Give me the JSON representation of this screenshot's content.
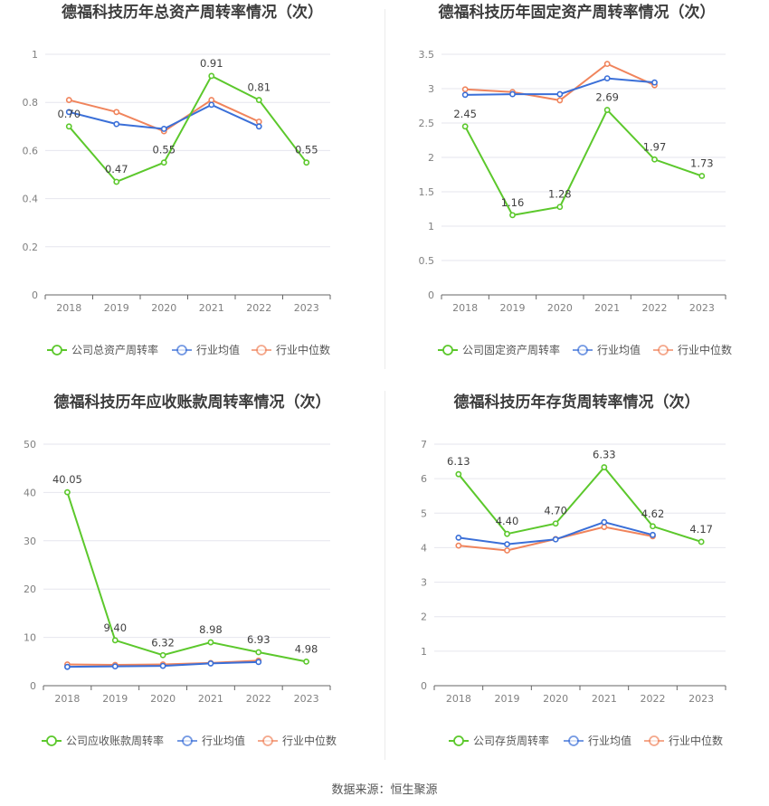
{
  "source": "数据来源：恒生聚源",
  "legend_names": [
    "行业均值",
    "行业中位数"
  ],
  "colors": {
    "company": "#5cc82c",
    "avg": "#3a6fd8",
    "median": "#f0845c"
  },
  "chart_data": [
    {
      "type": "line",
      "title": "德福科技历年总资产周转率情况（次）",
      "categories": [
        "2018",
        "2019",
        "2020",
        "2021",
        "2022",
        "2023"
      ],
      "ylim": [
        0,
        1
      ],
      "yticks": [
        "0",
        "0.2",
        "0.4",
        "0.6",
        "0.8",
        "1"
      ],
      "ytick_values": [
        0,
        0.2,
        0.4,
        0.6,
        0.8,
        1
      ],
      "legend": "bottom",
      "series": [
        {
          "name": "公司总资产周转率",
          "values": [
            0.7,
            0.47,
            0.55,
            0.91,
            0.81,
            0.55
          ],
          "labels": [
            "0.70",
            "0.47",
            "0.55",
            "0.91",
            "0.81",
            "0.55"
          ]
        },
        {
          "name": "行业均值",
          "values": [
            0.76,
            0.71,
            0.69,
            0.79,
            0.7,
            null
          ]
        },
        {
          "name": "行业中位数",
          "values": [
            0.81,
            0.76,
            0.68,
            0.81,
            0.72,
            null
          ]
        }
      ]
    },
    {
      "type": "line",
      "title": "德福科技历年固定资产周转率情况（次）",
      "categories": [
        "2018",
        "2019",
        "2020",
        "2021",
        "2022",
        "2023"
      ],
      "ylim": [
        0,
        3.5
      ],
      "yticks": [
        "0",
        "0.5",
        "1",
        "1.5",
        "2",
        "2.5",
        "3",
        "3.5"
      ],
      "ytick_values": [
        0,
        0.5,
        1,
        1.5,
        2,
        2.5,
        3,
        3.5
      ],
      "legend": "bottom",
      "series": [
        {
          "name": "公司固定资产周转率",
          "values": [
            2.45,
            1.16,
            1.28,
            2.69,
            1.97,
            1.73
          ],
          "labels": [
            "2.45",
            "1.16",
            "1.28",
            "2.69",
            "1.97",
            "1.73"
          ]
        },
        {
          "name": "行业均值",
          "values": [
            2.91,
            2.92,
            2.92,
            3.15,
            3.09,
            null
          ]
        },
        {
          "name": "行业中位数",
          "values": [
            2.99,
            2.95,
            2.83,
            3.36,
            3.05,
            null
          ]
        }
      ]
    },
    {
      "type": "line",
      "title": "德福科技历年应收账款周转率情况（次）",
      "categories": [
        "2018",
        "2019",
        "2020",
        "2021",
        "2022",
        "2023"
      ],
      "ylim": [
        0,
        50
      ],
      "yticks": [
        "0",
        "10",
        "20",
        "30",
        "40",
        "50"
      ],
      "ytick_values": [
        0,
        10,
        20,
        30,
        40,
        50
      ],
      "legend": "bottom",
      "series": [
        {
          "name": "公司应收账款周转率",
          "values": [
            40.05,
            9.4,
            6.32,
            8.98,
            6.93,
            4.98
          ],
          "labels": [
            "40.05",
            "9.40",
            "6.32",
            "8.98",
            "6.93",
            "4.98"
          ]
        },
        {
          "name": "行业均值",
          "values": [
            3.9,
            4.0,
            4.1,
            4.6,
            4.9,
            null
          ]
        },
        {
          "name": "行业中位数",
          "values": [
            4.4,
            4.3,
            4.4,
            4.7,
            5.2,
            null
          ]
        }
      ]
    },
    {
      "type": "line",
      "title": "德福科技历年存货周转率情况（次）",
      "categories": [
        "2018",
        "2019",
        "2020",
        "2021",
        "2022",
        "2023"
      ],
      "ylim": [
        0,
        7
      ],
      "yticks": [
        "0",
        "1",
        "2",
        "3",
        "4",
        "5",
        "6",
        "7"
      ],
      "ytick_values": [
        0,
        1,
        2,
        3,
        4,
        5,
        6,
        7
      ],
      "legend": "bottom",
      "series": [
        {
          "name": "公司存货周转率",
          "values": [
            6.13,
            4.4,
            4.7,
            6.33,
            4.62,
            4.17
          ],
          "labels": [
            "6.13",
            "4.40",
            "4.70",
            "6.33",
            "4.62",
            "4.17"
          ]
        },
        {
          "name": "行业均值",
          "values": [
            4.29,
            4.1,
            4.24,
            4.74,
            4.37,
            null
          ]
        },
        {
          "name": "行业中位数",
          "values": [
            4.06,
            3.92,
            4.25,
            4.6,
            4.33,
            null
          ]
        }
      ]
    }
  ]
}
